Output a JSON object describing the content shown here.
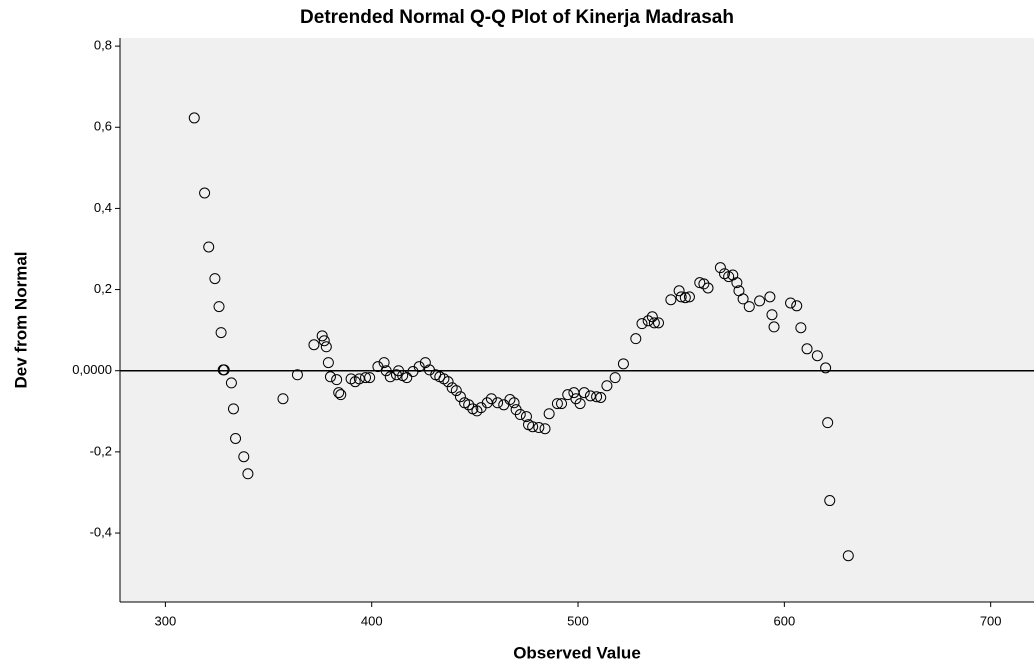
{
  "chart_data": {
    "type": "scatter",
    "title": "Detrended Normal Q-Q Plot of Kinerja Madrasah",
    "x_label": "Observed Value",
    "y_label": "Dev from Normal",
    "x": [
      314,
      319,
      321,
      324,
      326,
      327,
      328,
      328.5,
      332,
      333,
      334,
      338,
      340,
      357,
      364,
      372,
      376,
      377,
      378,
      379,
      380,
      383,
      384,
      385,
      390,
      392,
      394,
      397,
      399,
      403,
      406,
      407,
      409,
      412,
      413,
      415,
      417,
      420,
      423,
      426,
      428,
      431,
      433,
      435,
      437,
      439,
      441,
      443,
      445,
      447,
      449,
      451,
      453,
      456,
      458,
      461,
      464,
      467,
      469,
      470,
      472,
      475,
      476,
      478,
      481,
      484,
      486,
      490,
      492,
      495,
      498,
      499,
      501,
      503,
      506,
      509,
      511,
      514,
      518,
      522,
      528,
      531,
      534,
      536,
      537,
      539,
      545,
      549,
      550,
      552,
      554,
      559,
      561,
      563,
      569,
      571,
      573,
      575,
      577,
      578,
      580,
      583,
      588,
      593,
      594,
      595,
      603,
      606,
      608,
      611,
      616,
      620,
      621,
      622,
      631
    ],
    "y": [
      0.623,
      0.438,
      0.305,
      0.227,
      0.158,
      0.094,
      0.002,
      0.002,
      -0.03,
      -0.094,
      -0.167,
      -0.212,
      -0.254,
      -0.069,
      -0.01,
      0.064,
      0.086,
      0.074,
      0.059,
      0.02,
      -0.015,
      -0.022,
      -0.054,
      -0.059,
      -0.02,
      -0.027,
      -0.02,
      -0.017,
      -0.017,
      0.01,
      0.02,
      0.0,
      -0.015,
      -0.01,
      0.0,
      -0.012,
      -0.017,
      -0.002,
      0.01,
      0.02,
      0.002,
      -0.01,
      -0.015,
      -0.02,
      -0.027,
      -0.042,
      -0.049,
      -0.064,
      -0.079,
      -0.084,
      -0.094,
      -0.099,
      -0.091,
      -0.079,
      -0.069,
      -0.079,
      -0.084,
      -0.071,
      -0.079,
      -0.096,
      -0.108,
      -0.113,
      -0.133,
      -0.138,
      -0.14,
      -0.143,
      -0.106,
      -0.081,
      -0.081,
      -0.059,
      -0.054,
      -0.069,
      -0.081,
      -0.054,
      -0.062,
      -0.064,
      -0.066,
      -0.037,
      -0.017,
      0.017,
      0.079,
      0.116,
      0.123,
      0.133,
      0.118,
      0.118,
      0.175,
      0.197,
      0.182,
      0.18,
      0.182,
      0.217,
      0.214,
      0.204,
      0.254,
      0.239,
      0.232,
      0.236,
      0.217,
      0.197,
      0.177,
      0.158,
      0.172,
      0.182,
      0.138,
      0.108,
      0.167,
      0.16,
      0.106,
      0.054,
      0.037,
      0.007,
      -0.128,
      -0.32,
      -0.456
    ],
    "xlim": [
      278,
      721
    ],
    "ylim": [
      -0.57,
      0.82
    ],
    "xticks": [
      300,
      400,
      500,
      600,
      700
    ],
    "yticks": [
      {
        "value": 0.8,
        "label": "0,8"
      },
      {
        "value": 0.6,
        "label": "0,6"
      },
      {
        "value": 0.4,
        "label": "0,4"
      },
      {
        "value": 0.2,
        "label": "0,2"
      },
      {
        "value": 0,
        "label": "0,0000"
      },
      {
        "value": -0.2,
        "label": "-0,2"
      },
      {
        "value": -0.4,
        "label": "-0,4"
      }
    ],
    "reference_line": 0,
    "color": "#000000",
    "background": "#f0f0f0",
    "grid": false
  }
}
